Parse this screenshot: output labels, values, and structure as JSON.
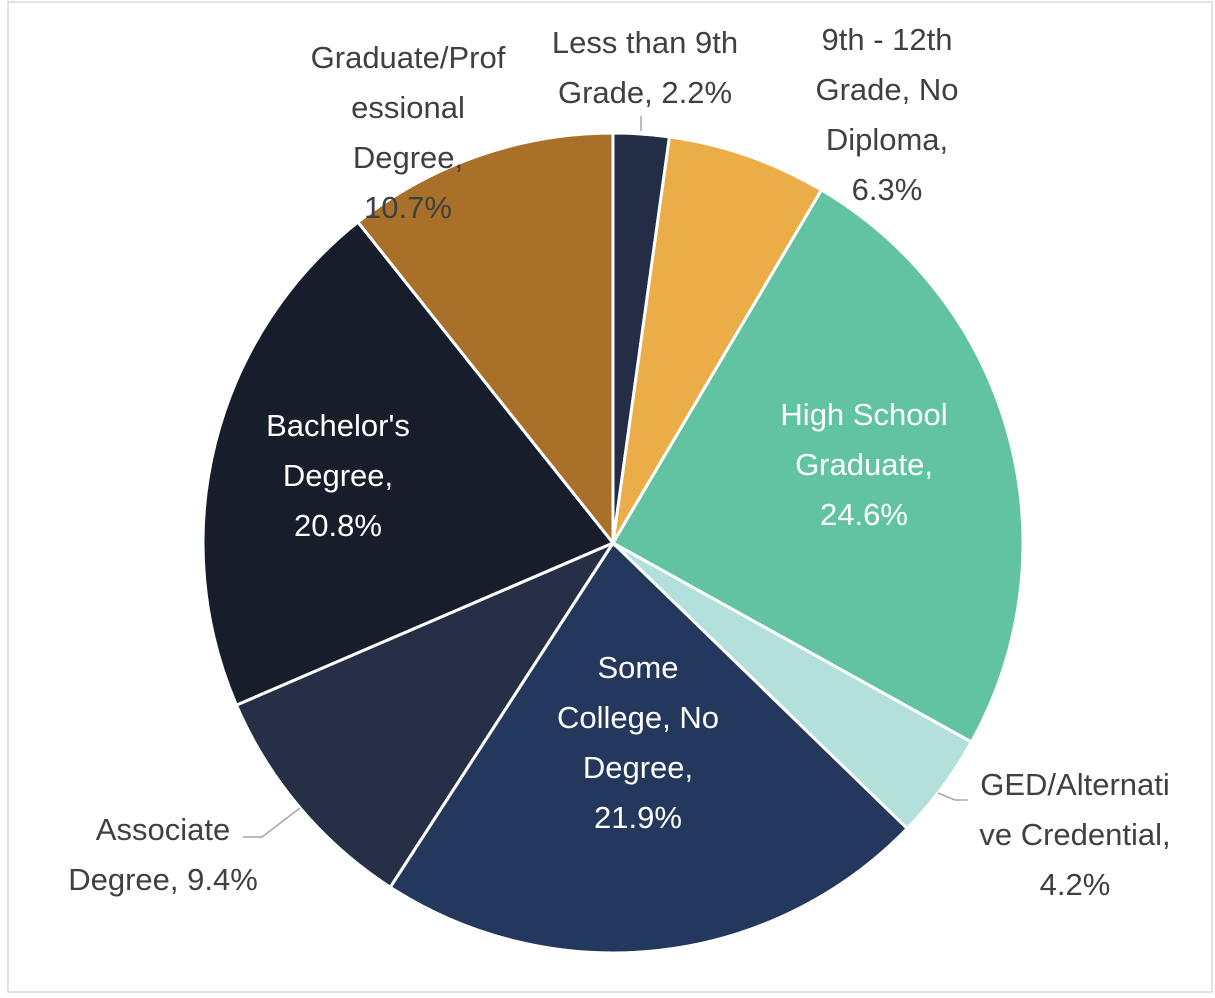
{
  "chart_data": {
    "type": "pie",
    "values": [
      2.2,
      6.3,
      24.6,
      4.2,
      21.9,
      9.4,
      20.8,
      10.7
    ],
    "value_labels": [
      [
        "Less than 9th",
        "Grade, 2.2%"
      ],
      [
        "9th - 12th",
        "Grade, No",
        "Diploma,",
        "6.3%"
      ],
      [
        "High School",
        "Graduate,",
        "24.6%"
      ],
      [
        "GED/Alternati",
        "ve Credential,",
        "4.2%"
      ],
      [
        "Some",
        "College, No",
        "Degree,",
        "21.9%"
      ],
      [
        "Associate",
        "Degree, 9.4%"
      ],
      [
        "Bachelor's",
        "Degree,",
        "20.8%"
      ],
      [
        "Graduate/Prof",
        "essional",
        "Degree,",
        "10.7%"
      ]
    ],
    "colors": [
      "#232d45",
      "#ebad48",
      "#61c3a2",
      "#b3e0db",
      "#23385c",
      "#262f45",
      "#181d2b",
      "#a87028"
    ]
  }
}
